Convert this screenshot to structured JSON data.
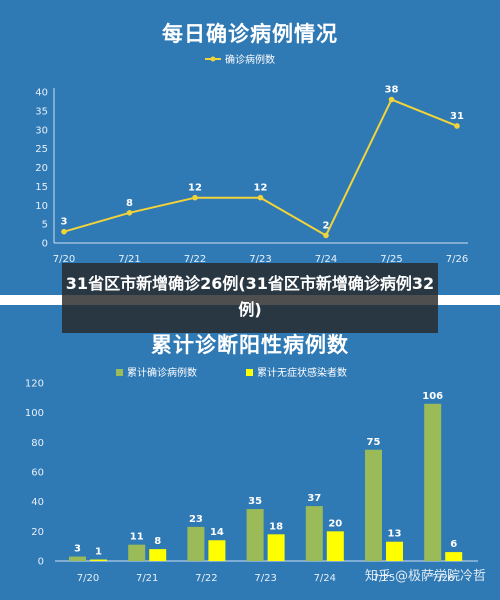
{
  "overlay_text": "31省区市新增确诊26例(31省区市新增确诊病例32例)",
  "watermark": "知乎 @极萨学院冷哲",
  "chart_data": [
    {
      "type": "line",
      "title": "每日确诊病例情况",
      "categories": [
        "7/20",
        "7/21",
        "7/22",
        "7/23",
        "7/24",
        "7/25",
        "7/26"
      ],
      "series": [
        {
          "name": "确诊病例数",
          "values": [
            3,
            8,
            12,
            12,
            2,
            38,
            31
          ],
          "color": "#f2d43a"
        }
      ],
      "ylim": [
        0,
        40
      ],
      "yticks": [
        0,
        5,
        10,
        15,
        20,
        25,
        30,
        35,
        40
      ],
      "legend": "top-center",
      "grid": false
    },
    {
      "type": "bar",
      "title": "累计诊断阳性病例数",
      "categories": [
        "7/20",
        "7/21",
        "7/22",
        "7/23",
        "7/24",
        "7/25",
        "7/26"
      ],
      "series": [
        {
          "name": "累计确诊病例数",
          "values": [
            3,
            11,
            23,
            35,
            37,
            75,
            106
          ],
          "color": "#9bbb59"
        },
        {
          "name": "累计无症状感染者数",
          "values": [
            1,
            8,
            14,
            18,
            20,
            13,
            6
          ],
          "color": "#ffff00"
        }
      ],
      "ylim": [
        0,
        120
      ],
      "yticks": [
        0,
        20,
        40,
        60,
        80,
        100,
        120
      ],
      "legend": "top-center",
      "grid": false
    }
  ]
}
